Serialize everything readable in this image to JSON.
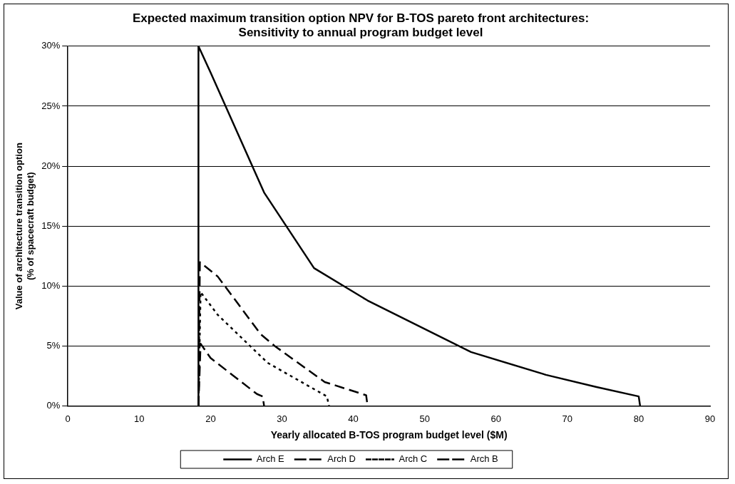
{
  "chart_data": {
    "type": "line",
    "title": "Expected maximum transition option NPV for B-TOS pareto front architectures:\nSensitivity to annual program budget level",
    "xlabel": "Yearly allocated B-TOS program budget level ($M)",
    "ylabel": "Value of architecture transition option\n(% of spacecraft budget)",
    "series": [
      {
        "name": "Arch E",
        "color": "#000000",
        "line_style": "solid",
        "x": [
          18.3,
          18.3,
          20,
          27.5,
          34.5,
          42,
          56.5,
          67,
          74,
          80,
          80.2
        ],
        "values": [
          0,
          30,
          27.8,
          17.8,
          11.5,
          8.8,
          4.5,
          2.6,
          1.6,
          0.8,
          0
        ]
      },
      {
        "name": "Arch D",
        "color": "#000000",
        "line_style": "dashed",
        "x": [
          18.3,
          18.5,
          21,
          27,
          29,
          36,
          41.8,
          42
        ],
        "values": [
          0,
          12,
          10.8,
          6,
          5,
          2,
          0.9,
          0
        ]
      },
      {
        "name": "Arch C",
        "color": "#000000",
        "line_style": "dotted",
        "x": [
          18.3,
          18.6,
          21,
          28,
          36.3,
          36.6
        ],
        "values": [
          0,
          9.5,
          7.6,
          3.6,
          0.8,
          0
        ]
      },
      {
        "name": "Arch B",
        "color": "#000000",
        "line_style": "dashed",
        "x": [
          18.3,
          18.6,
          20,
          26.5,
          27.3,
          27.5
        ],
        "values": [
          0,
          5.2,
          4,
          1,
          0.8,
          0
        ]
      }
    ],
    "xlim": [
      0,
      90
    ],
    "xticks": [
      0,
      10,
      20,
      30,
      40,
      50,
      60,
      70,
      80,
      90
    ],
    "ylim": [
      0,
      30
    ],
    "yticks": [
      {
        "value": 0,
        "label": "0%"
      },
      {
        "value": 5,
        "label": "5%"
      },
      {
        "value": 10,
        "label": "10%"
      },
      {
        "value": 15,
        "label": "15%"
      },
      {
        "value": 20,
        "label": "20%"
      },
      {
        "value": 25,
        "label": "25%"
      },
      {
        "value": 30,
        "label": "30%"
      }
    ],
    "grid": "y",
    "legend": "bottom",
    "marker": "none"
  }
}
